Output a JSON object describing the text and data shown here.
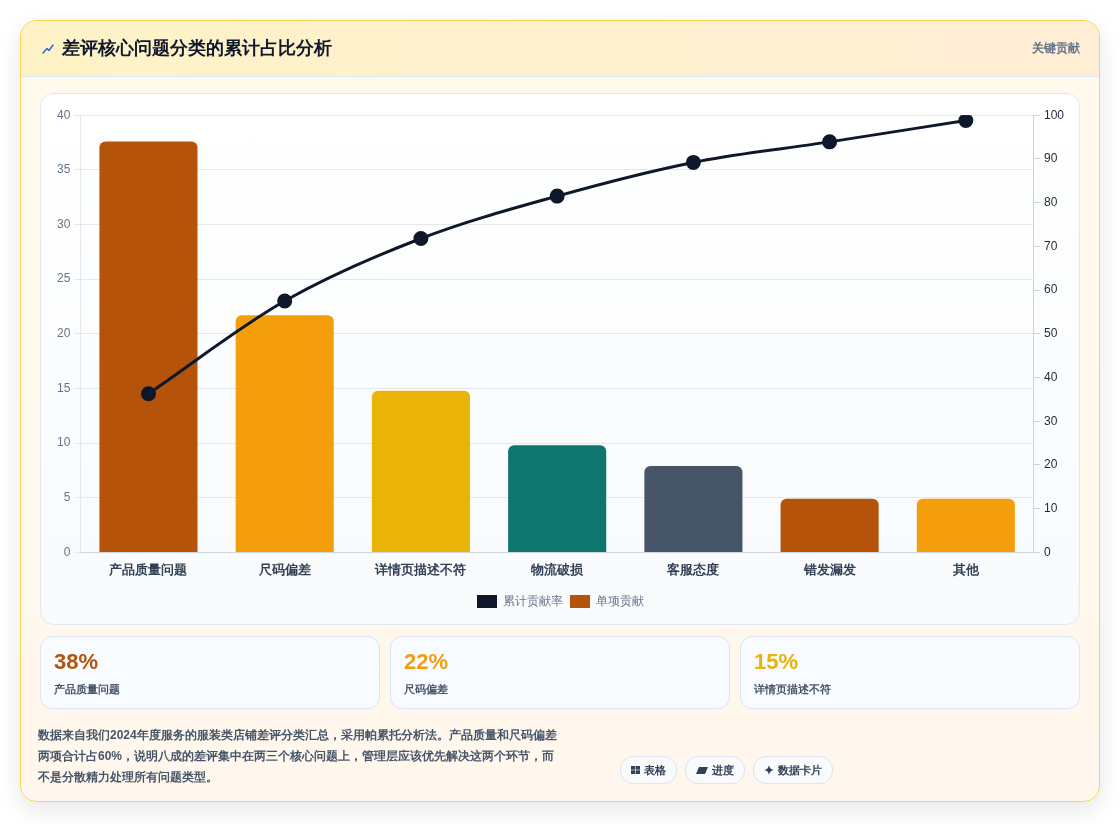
{
  "chart_data": [
    {
      "type": "bar",
      "title": "差评核心问题分类的累计占比分析",
      "subtitle": "关键贡献",
      "categories": [
        "产品质量问题",
        "尺码偏差",
        "详情页描述不符",
        "物流破损",
        "客服态度",
        "错发漏发",
        "其他"
      ],
      "series": [
        {
          "name": "累计贡献率",
          "type": "line",
          "axis": "y2",
          "color": "#0f172a",
          "values": [
            36.3,
            57.5,
            71.8,
            81.5,
            89.2,
            93.9,
            98.8
          ]
        },
        {
          "name": "单项贡献",
          "type": "bar",
          "colors": [
            "#b45309",
            "#f59e0b",
            "#eab308",
            "#0f766e",
            "#475569",
            "#b45309",
            "#f59e0b"
          ],
          "values": [
            37.6,
            21.7,
            14.8,
            9.8,
            7.9,
            4.9,
            4.9
          ]
        }
      ],
      "ylim": [
        0,
        40
      ],
      "yticks": [
        0,
        5,
        10,
        15,
        20,
        25,
        30,
        35,
        40
      ],
      "y2lim": [
        0,
        100
      ],
      "y2ticks": [
        0,
        10,
        20,
        30,
        40,
        50,
        60,
        70,
        80,
        90,
        100
      ],
      "grid": "y",
      "legend": "bottom",
      "marker": "circle",
      "line_style": "solid",
      "annotations": [
        "数据来自我们2024年度服务的服装类店铺差评分类汇总，采用帕累托分析法。产品质量和尺码偏差两项合计占60%，说明八成的差评集中在两三个核心问题上，管理层应该优先解决这两个环节，而不是分散精力处理所有问题类型。",
        "表格",
        "进度",
        "数据卡片"
      ]
    },
    {
      "type": "other",
      "annotations": [
        "38%",
        "产品质量问题",
        "22%",
        "尺码偏差",
        "15%",
        "详情页描述不符"
      ],
      "colors": [
        "#b45309",
        "#f59e0b",
        "#eab308"
      ]
    }
  ]
}
